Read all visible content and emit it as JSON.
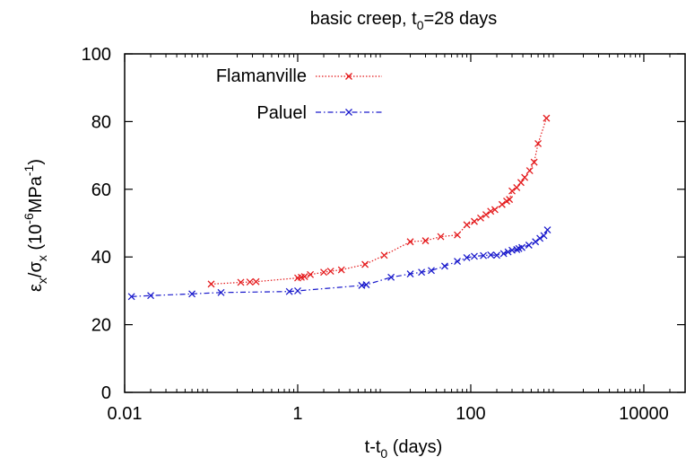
{
  "chart_data": {
    "type": "scatter",
    "title_main": "basic creep, t",
    "title_sub": "0",
    "title_tail": "=28 days",
    "xlabel_main": "t-t",
    "xlabel_sub": "0",
    "xlabel_tail": " (days)",
    "ylabel": {
      "p1": "ε",
      "p1_sub": "x",
      "p2": "/σ",
      "p2_sub": "x",
      "p3": " (10",
      "p3_sup": "-6",
      "p4": "MPa",
      "p4_sup": "-1",
      "p5": ")"
    },
    "x_scale": "log",
    "xlim": [
      0.01,
      30000
    ],
    "ylim": [
      0,
      100
    ],
    "x_ticks": [
      {
        "value": 0.01,
        "label": "0.01"
      },
      {
        "value": 1,
        "label": "1"
      },
      {
        "value": 100,
        "label": "100"
      },
      {
        "value": 10000,
        "label": "10000"
      }
    ],
    "y_ticks": [
      {
        "value": 0,
        "label": "0"
      },
      {
        "value": 20,
        "label": "20"
      },
      {
        "value": 40,
        "label": "40"
      },
      {
        "value": 60,
        "label": "60"
      },
      {
        "value": 80,
        "label": "80"
      },
      {
        "value": 100,
        "label": "100"
      }
    ],
    "grid": false,
    "legend_position": "top-left",
    "series": [
      {
        "name": "Flamanville",
        "color": "#e41a1c",
        "line_style": "dotted",
        "marker": "x",
        "x": [
          0.1,
          0.22,
          0.28,
          0.33,
          1.0,
          1.1,
          1.2,
          1.4,
          2.0,
          2.4,
          3.2,
          6.0,
          10,
          20,
          30,
          45,
          70,
          90,
          110,
          130,
          150,
          170,
          190,
          230,
          260,
          280,
          300,
          340,
          380,
          420,
          480,
          540,
          600,
          750
        ],
        "y": [
          32,
          32.5,
          32.6,
          32.7,
          33.8,
          34.0,
          34.2,
          34.8,
          35.5,
          35.8,
          36.2,
          37.8,
          40.5,
          44.5,
          44.8,
          46.0,
          46.5,
          49.5,
          50.5,
          51.5,
          52.5,
          53.5,
          54.0,
          55.5,
          56.5,
          57.0,
          59.5,
          60.5,
          62.0,
          63.5,
          65.5,
          68.0,
          73.5,
          81.0
        ]
      },
      {
        "name": "Paluel",
        "color": "#1a1acc",
        "line_style": "dash-dot",
        "marker": "x",
        "x": [
          0.012,
          0.02,
          0.06,
          0.13,
          0.8,
          1.0,
          5.5,
          6.2,
          12,
          20,
          27,
          35,
          50,
          70,
          90,
          110,
          140,
          170,
          200,
          240,
          270,
          300,
          340,
          360,
          390,
          470,
          560,
          630,
          700,
          770
        ],
        "y": [
          28.3,
          28.6,
          29.1,
          29.5,
          29.8,
          30.0,
          31.6,
          31.8,
          34.0,
          35.0,
          35.5,
          36.0,
          37.3,
          38.7,
          39.8,
          40.2,
          40.4,
          40.6,
          40.5,
          41.0,
          41.5,
          42.0,
          42.2,
          42.5,
          42.8,
          43.5,
          44.5,
          45.5,
          46.3,
          48.0
        ]
      }
    ]
  }
}
